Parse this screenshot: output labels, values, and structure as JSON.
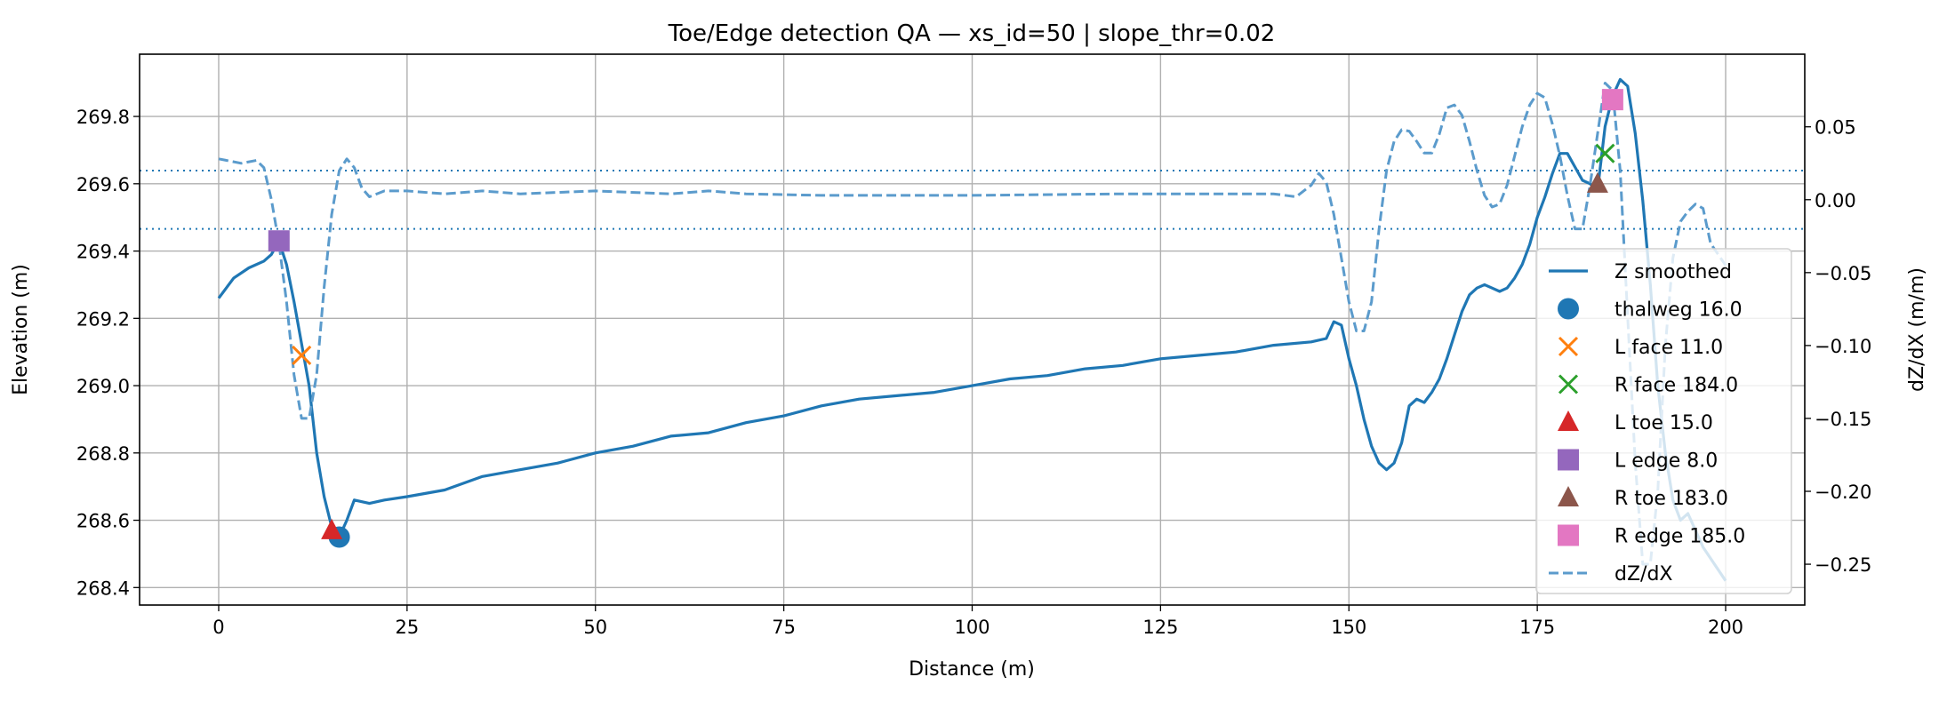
{
  "chart_data": {
    "type": "line",
    "title": "Toe/Edge detection QA — xs_id=50 | slope_thr=0.02",
    "xlabel": "Distance (m)",
    "ylabel": "Elevation (m)",
    "y2label": "dZ/dX (m/m)",
    "xlim": [
      -10.5,
      210.5
    ],
    "ylim": [
      268.348,
      269.985
    ],
    "y2lim": [
      -0.278,
      0.0998
    ],
    "grid": true,
    "legend_position": "right",
    "xticks": [
      "0",
      "25",
      "50",
      "75",
      "100",
      "125",
      "150",
      "175",
      "200"
    ],
    "yticks": [
      "268.4",
      "268.6",
      "268.8",
      "269.0",
      "269.2",
      "269.4",
      "269.6",
      "269.8"
    ],
    "y2ticks": [
      "0.05",
      "0.00",
      "−0.05",
      "−0.10",
      "−0.15",
      "−0.20",
      "−0.25"
    ],
    "threshold_lines": [
      0.02,
      -0.02
    ],
    "series": [
      {
        "name": "Z smoothed",
        "axis": "left",
        "color": "#1f77b4",
        "style": "solid",
        "x": [
          0,
          2,
          4,
          6,
          7,
          8,
          9,
          10,
          12,
          13,
          14,
          15,
          16,
          17,
          18,
          20,
          22,
          25,
          30,
          35,
          40,
          45,
          50,
          55,
          60,
          65,
          70,
          75,
          80,
          85,
          90,
          95,
          100,
          105,
          110,
          115,
          120,
          125,
          130,
          135,
          140,
          145,
          147,
          148,
          149,
          150,
          151,
          152,
          153,
          154,
          155,
          156,
          157,
          158,
          159,
          160,
          161,
          162,
          163,
          164,
          165,
          166,
          167,
          168,
          169,
          170,
          171,
          172,
          173,
          174,
          175,
          176,
          177,
          178,
          179,
          180,
          181,
          182,
          183,
          184,
          185,
          186,
          187,
          188,
          189,
          190,
          191,
          192,
          193,
          194,
          195,
          197,
          200
        ],
        "y": [
          269.26,
          269.32,
          269.35,
          269.37,
          269.39,
          269.43,
          269.36,
          269.25,
          269.0,
          268.8,
          268.67,
          268.58,
          268.55,
          268.6,
          268.66,
          268.65,
          268.66,
          268.67,
          268.69,
          268.73,
          268.75,
          268.77,
          268.8,
          268.82,
          268.85,
          268.86,
          268.89,
          268.91,
          268.94,
          268.96,
          268.97,
          268.98,
          269.0,
          269.02,
          269.03,
          269.05,
          269.06,
          269.08,
          269.09,
          269.1,
          269.12,
          269.13,
          269.14,
          269.19,
          269.18,
          269.08,
          269.0,
          268.9,
          268.82,
          268.77,
          268.75,
          268.77,
          268.83,
          268.94,
          268.96,
          268.95,
          268.98,
          269.02,
          269.08,
          269.15,
          269.22,
          269.27,
          269.29,
          269.3,
          269.29,
          269.28,
          269.29,
          269.32,
          269.36,
          269.42,
          269.5,
          269.56,
          269.63,
          269.69,
          269.69,
          269.65,
          269.61,
          269.6,
          269.58,
          269.77,
          269.86,
          269.91,
          269.89,
          269.75,
          269.55,
          269.3,
          269.0,
          268.8,
          268.66,
          268.6,
          268.62,
          268.52,
          268.42
        ]
      },
      {
        "name": "dZ/dX",
        "axis": "right",
        "color": "#5b9bcc",
        "style": "dashed",
        "x": [
          0,
          3,
          5,
          6,
          7,
          8,
          9,
          10,
          11,
          12,
          13,
          14,
          15,
          16,
          17,
          18,
          19,
          20,
          22,
          25,
          30,
          35,
          40,
          50,
          60,
          65,
          70,
          80,
          100,
          120,
          140,
          143,
          145,
          146,
          147,
          148,
          149,
          150,
          151,
          152,
          153,
          154,
          155,
          156,
          157,
          158,
          159,
          160,
          161,
          162,
          163,
          164,
          165,
          166,
          167,
          168,
          169,
          170,
          171,
          172,
          173,
          174,
          175,
          176,
          177,
          178,
          179,
          180,
          181,
          182,
          183,
          184,
          185,
          186,
          187,
          188,
          189,
          190,
          191,
          192,
          193,
          194,
          195,
          196,
          197,
          198,
          200
        ],
        "y": [
          0.028,
          0.025,
          0.027,
          0.022,
          0.0,
          -0.03,
          -0.07,
          -0.12,
          -0.15,
          -0.15,
          -0.12,
          -0.06,
          -0.01,
          0.02,
          0.028,
          0.022,
          0.008,
          0.002,
          0.006,
          0.006,
          0.004,
          0.006,
          0.004,
          0.006,
          0.004,
          0.006,
          0.004,
          0.003,
          0.003,
          0.004,
          0.004,
          0.002,
          0.01,
          0.018,
          0.012,
          -0.01,
          -0.04,
          -0.07,
          -0.09,
          -0.09,
          -0.07,
          -0.02,
          0.02,
          0.04,
          0.048,
          0.047,
          0.04,
          0.032,
          0.032,
          0.045,
          0.063,
          0.065,
          0.058,
          0.04,
          0.02,
          0.003,
          -0.005,
          -0.003,
          0.01,
          0.03,
          0.05,
          0.065,
          0.073,
          0.07,
          0.052,
          0.03,
          0.003,
          -0.02,
          -0.02,
          0.01,
          0.045,
          0.08,
          0.075,
          0.02,
          -0.08,
          -0.18,
          -0.25,
          -0.25,
          -0.2,
          -0.1,
          -0.04,
          -0.015,
          -0.008,
          -0.003,
          -0.006,
          -0.03,
          -0.045
        ]
      }
    ],
    "markers": [
      {
        "label": "thalweg 16.0",
        "x": 16,
        "y": 268.55,
        "shape": "circle",
        "color": "#1f77b4"
      },
      {
        "label": "L face 11.0",
        "x": 11,
        "y": 269.09,
        "shape": "x",
        "color": "#ff7f0e"
      },
      {
        "label": "R face 184.0",
        "x": 184,
        "y": 269.69,
        "shape": "x",
        "color": "#2ca02c"
      },
      {
        "label": "L toe 15.0",
        "x": 15,
        "y": 268.57,
        "shape": "triangle",
        "color": "#d62728"
      },
      {
        "label": "L edge 8.0",
        "x": 8,
        "y": 269.43,
        "shape": "square",
        "color": "#9467bd"
      },
      {
        "label": "R toe 183.0",
        "x": 183,
        "y": 269.6,
        "shape": "triangle",
        "color": "#8c564b"
      },
      {
        "label": "R edge 185.0",
        "x": 185,
        "y": 269.85,
        "shape": "square",
        "color": "#e377c2"
      }
    ]
  }
}
